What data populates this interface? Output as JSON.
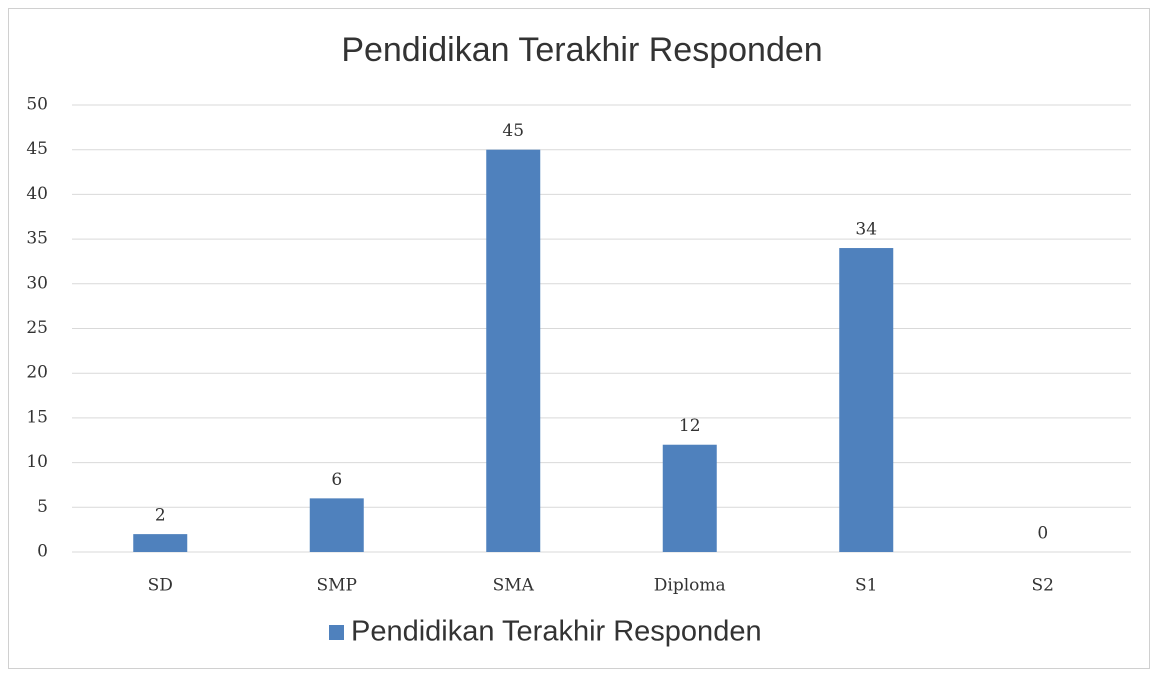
{
  "chart_data": {
    "type": "bar",
    "title": "Pendidikan Terakhir Responden",
    "categories": [
      "SD",
      "SMP",
      "SMA",
      "Diploma",
      "S1",
      "S2"
    ],
    "series": [
      {
        "name": "Pendidikan Terakhir Responden",
        "color": "#4f81bd",
        "values": [
          2,
          6,
          45,
          12,
          34,
          0
        ]
      }
    ],
    "ylim": [
      0,
      50
    ],
    "yticks": [
      0,
      5,
      10,
      15,
      20,
      25,
      30,
      35,
      40,
      45,
      50
    ],
    "grid": true,
    "legend": "bottom",
    "data_labels": true
  }
}
